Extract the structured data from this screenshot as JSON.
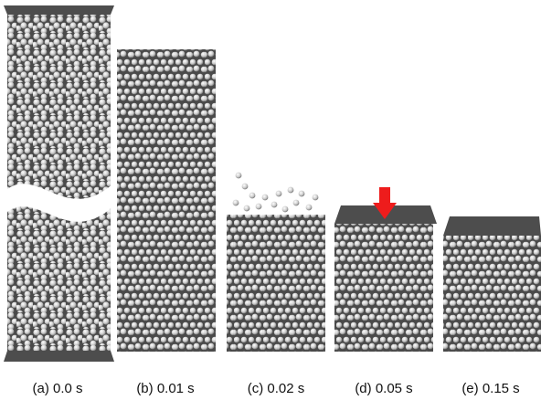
{
  "panels": [
    {
      "caption": "(a) 0.0 s"
    },
    {
      "caption": "(b) 0.01 s"
    },
    {
      "caption": "(c) 0.02 s"
    },
    {
      "caption": "(d) 0.05 s"
    },
    {
      "caption": "(e) 0.15 s"
    }
  ]
}
